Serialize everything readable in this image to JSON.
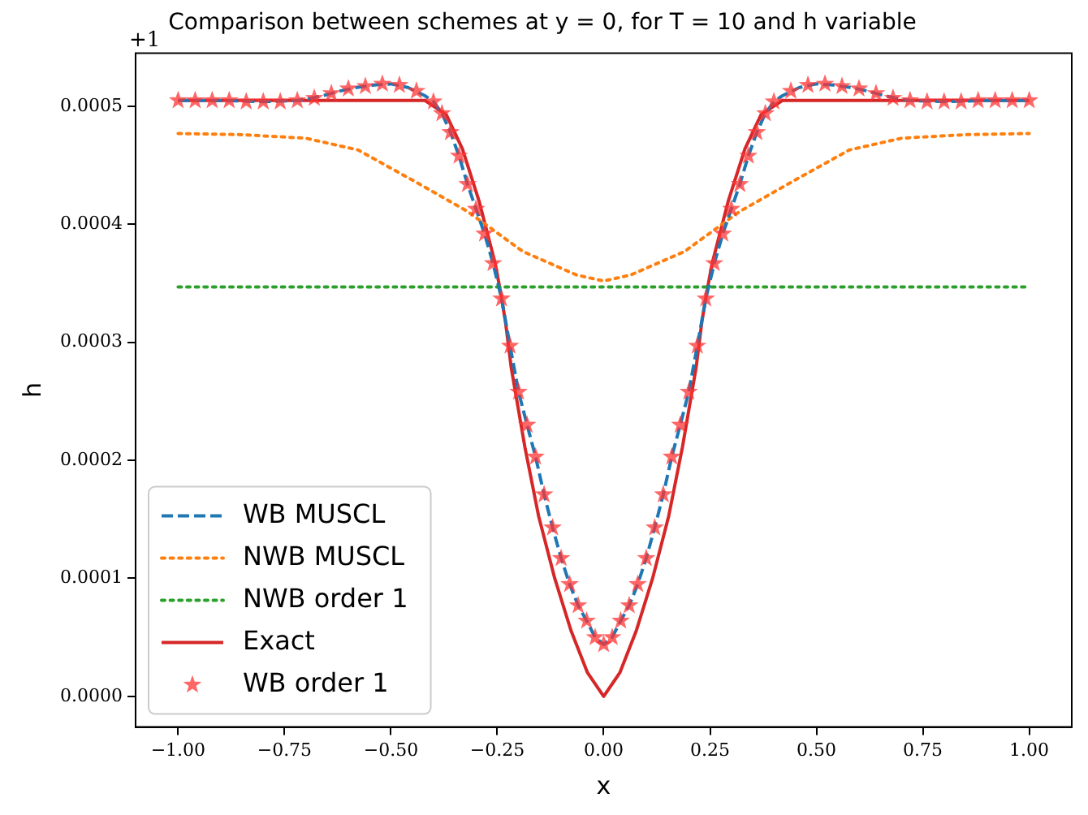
{
  "chart_data": {
    "type": "line",
    "title": "Comparison between schemes at y = 0, for T = 10 and h variable",
    "xlabel": "x",
    "ylabel": "h",
    "annotations": [
      "+1"
    ],
    "xlim": [
      -1.1,
      1.1
    ],
    "xticks": [
      {
        "value": -1,
        "label": "−1.00"
      },
      {
        "value": -0.75,
        "label": "−0.75"
      },
      {
        "value": -0.5,
        "label": "−0.50"
      },
      {
        "value": -0.25,
        "label": "−0.25"
      },
      {
        "value": 0,
        "label": "0.00"
      },
      {
        "value": 0.25,
        "label": "0.25"
      },
      {
        "value": 0.5,
        "label": "0.50"
      },
      {
        "value": 0.75,
        "label": "0.75"
      },
      {
        "value": 1,
        "label": "1.00"
      }
    ],
    "ylim": [
      -2.6e-05,
      0.000545
    ],
    "yticks": [
      {
        "value": 0,
        "label": "0.0000"
      },
      0.0001,
      0.0002,
      0.0003,
      0.0004,
      0.0005
    ],
    "grid": false,
    "legend": "bottom left",
    "series": [
      {
        "name": "WB MUSCL",
        "color": "#1f77b4",
        "line_style": "dashed",
        "marker": "none",
        "x": [
          -1,
          -0.9,
          -0.8,
          -0.72,
          -0.7,
          -0.66,
          -0.62,
          -0.58,
          -0.54,
          -0.5,
          -0.46,
          -0.42,
          -0.4,
          -0.38,
          -0.36,
          -0.34,
          -0.32,
          -0.3,
          -0.28,
          -0.26,
          -0.24,
          -0.22,
          -0.2,
          -0.18,
          -0.16,
          -0.14,
          -0.12,
          -0.1,
          -0.08,
          -0.06,
          -0.04,
          -0.02,
          0,
          0.02,
          0.04,
          0.06,
          0.08,
          0.1,
          0.12,
          0.14,
          0.16,
          0.18,
          0.2,
          0.22,
          0.24,
          0.26,
          0.28,
          0.3,
          0.32,
          0.34,
          0.36,
          0.38,
          0.4,
          0.42,
          0.46,
          0.5,
          0.54,
          0.58,
          0.62,
          0.66,
          0.7,
          0.72,
          0.8,
          0.9,
          1
        ],
        "values": [
          0.000505,
          0.000505,
          0.000504,
          0.000505,
          0.000506,
          0.000509,
          0.000513,
          0.000516,
          0.000518,
          0.000519,
          0.000516,
          0.000509,
          0.000504,
          0.000494,
          0.000478,
          0.000458,
          0.000434,
          0.000413,
          0.000392,
          0.000367,
          0.000337,
          0.000297,
          0.000258,
          0.00023,
          0.000203,
          0.000171,
          0.000143,
          0.000117,
          9.5e-05,
          7.7e-05,
          6.4e-05,
          5e-05,
          4.4e-05,
          5e-05,
          6.4e-05,
          7.7e-05,
          9.5e-05,
          0.000117,
          0.000143,
          0.000171,
          0.000203,
          0.00023,
          0.000258,
          0.000297,
          0.000337,
          0.000367,
          0.000392,
          0.000413,
          0.000434,
          0.000458,
          0.000478,
          0.000494,
          0.000504,
          0.000509,
          0.000516,
          0.000519,
          0.000518,
          0.000516,
          0.000513,
          0.000509,
          0.000506,
          0.000505,
          0.000504,
          0.000505,
          0.000505
        ]
      },
      {
        "name": "NWB MUSCL",
        "color": "#ff7f0e",
        "line_style": "dotted",
        "marker": "none",
        "x": [
          -1,
          -0.85,
          -0.7,
          -0.577,
          -0.447,
          -0.32,
          -0.19,
          -0.063,
          0,
          0.063,
          0.19,
          0.32,
          0.447,
          0.577,
          0.7,
          0.85,
          1
        ],
        "values": [
          0.000477,
          0.000476,
          0.000473,
          0.000463,
          0.000437,
          0.000411,
          0.000377,
          0.000357,
          0.000352,
          0.000357,
          0.000377,
          0.000411,
          0.000437,
          0.000463,
          0.000473,
          0.000476,
          0.000477
        ]
      },
      {
        "name": "NWB order 1",
        "color": "#2ca02c",
        "line_style": "dotted",
        "marker": "none",
        "x": [
          -1,
          1
        ],
        "values": [
          0.000347,
          0.000347
        ]
      },
      {
        "name": "Exact",
        "color": "#d62728",
        "line_style": "solid",
        "marker": "none",
        "x": [
          -1,
          -0.45,
          -0.42,
          -0.37,
          -0.332,
          -0.293,
          -0.255,
          -0.243,
          -0.231,
          -0.217,
          -0.185,
          -0.153,
          -0.115,
          -0.077,
          -0.038,
          0,
          0.038,
          0.077,
          0.115,
          0.153,
          0.185,
          0.217,
          0.231,
          0.243,
          0.255,
          0.293,
          0.332,
          0.37,
          0.42,
          0.45,
          1
        ],
        "values": [
          0.000505,
          0.000505,
          0.000505,
          0.000493,
          0.000464,
          0.00042,
          0.000367,
          0.000344,
          0.000318,
          0.000278,
          0.000211,
          0.000153,
          0.0001,
          5.6e-05,
          2e-05,
          0,
          2e-05,
          5.6e-05,
          0.0001,
          0.000153,
          0.000211,
          0.000278,
          0.000318,
          0.000344,
          0.000367,
          0.00042,
          0.000464,
          0.000493,
          0.000505,
          0.000505,
          0.000505
        ]
      },
      {
        "name": "WB order 1",
        "type": "scatter",
        "color": "#ff3333",
        "marker": "star",
        "x": [
          -1,
          -0.96,
          -0.92,
          -0.88,
          -0.84,
          -0.8,
          -0.76,
          -0.72,
          -0.68,
          -0.64,
          -0.6,
          -0.56,
          -0.52,
          -0.48,
          -0.44,
          -0.4,
          -0.38,
          -0.36,
          -0.34,
          -0.32,
          -0.3,
          -0.28,
          -0.26,
          -0.24,
          -0.22,
          -0.2,
          -0.18,
          -0.16,
          -0.14,
          -0.12,
          -0.1,
          -0.08,
          -0.06,
          -0.04,
          -0.02,
          0,
          0.02,
          0.04,
          0.06,
          0.08,
          0.1,
          0.12,
          0.14,
          0.16,
          0.18,
          0.2,
          0.22,
          0.24,
          0.26,
          0.28,
          0.3,
          0.32,
          0.34,
          0.36,
          0.38,
          0.4,
          0.44,
          0.48,
          0.52,
          0.56,
          0.6,
          0.64,
          0.68,
          0.72,
          0.76,
          0.8,
          0.84,
          0.88,
          0.92,
          0.96,
          1
        ],
        "values": [
          0.000505,
          0.000505,
          0.000505,
          0.000505,
          0.000504,
          0.000504,
          0.000504,
          0.000505,
          0.000507,
          0.000511,
          0.000515,
          0.000517,
          0.000519,
          0.000518,
          0.000513,
          0.000504,
          0.000494,
          0.000478,
          0.000458,
          0.000434,
          0.000413,
          0.000392,
          0.000367,
          0.000337,
          0.000297,
          0.000258,
          0.00023,
          0.000203,
          0.000171,
          0.000143,
          0.000117,
          9.5e-05,
          7.7e-05,
          6.4e-05,
          5e-05,
          4.4e-05,
          5e-05,
          6.4e-05,
          7.7e-05,
          9.5e-05,
          0.000117,
          0.000143,
          0.000171,
          0.000203,
          0.00023,
          0.000258,
          0.000297,
          0.000337,
          0.000367,
          0.000392,
          0.000413,
          0.000434,
          0.000458,
          0.000478,
          0.000494,
          0.000504,
          0.000513,
          0.000518,
          0.000519,
          0.000517,
          0.000515,
          0.000511,
          0.000507,
          0.000505,
          0.000504,
          0.000504,
          0.000504,
          0.000505,
          0.000505,
          0.000505,
          0.000505
        ]
      }
    ]
  }
}
